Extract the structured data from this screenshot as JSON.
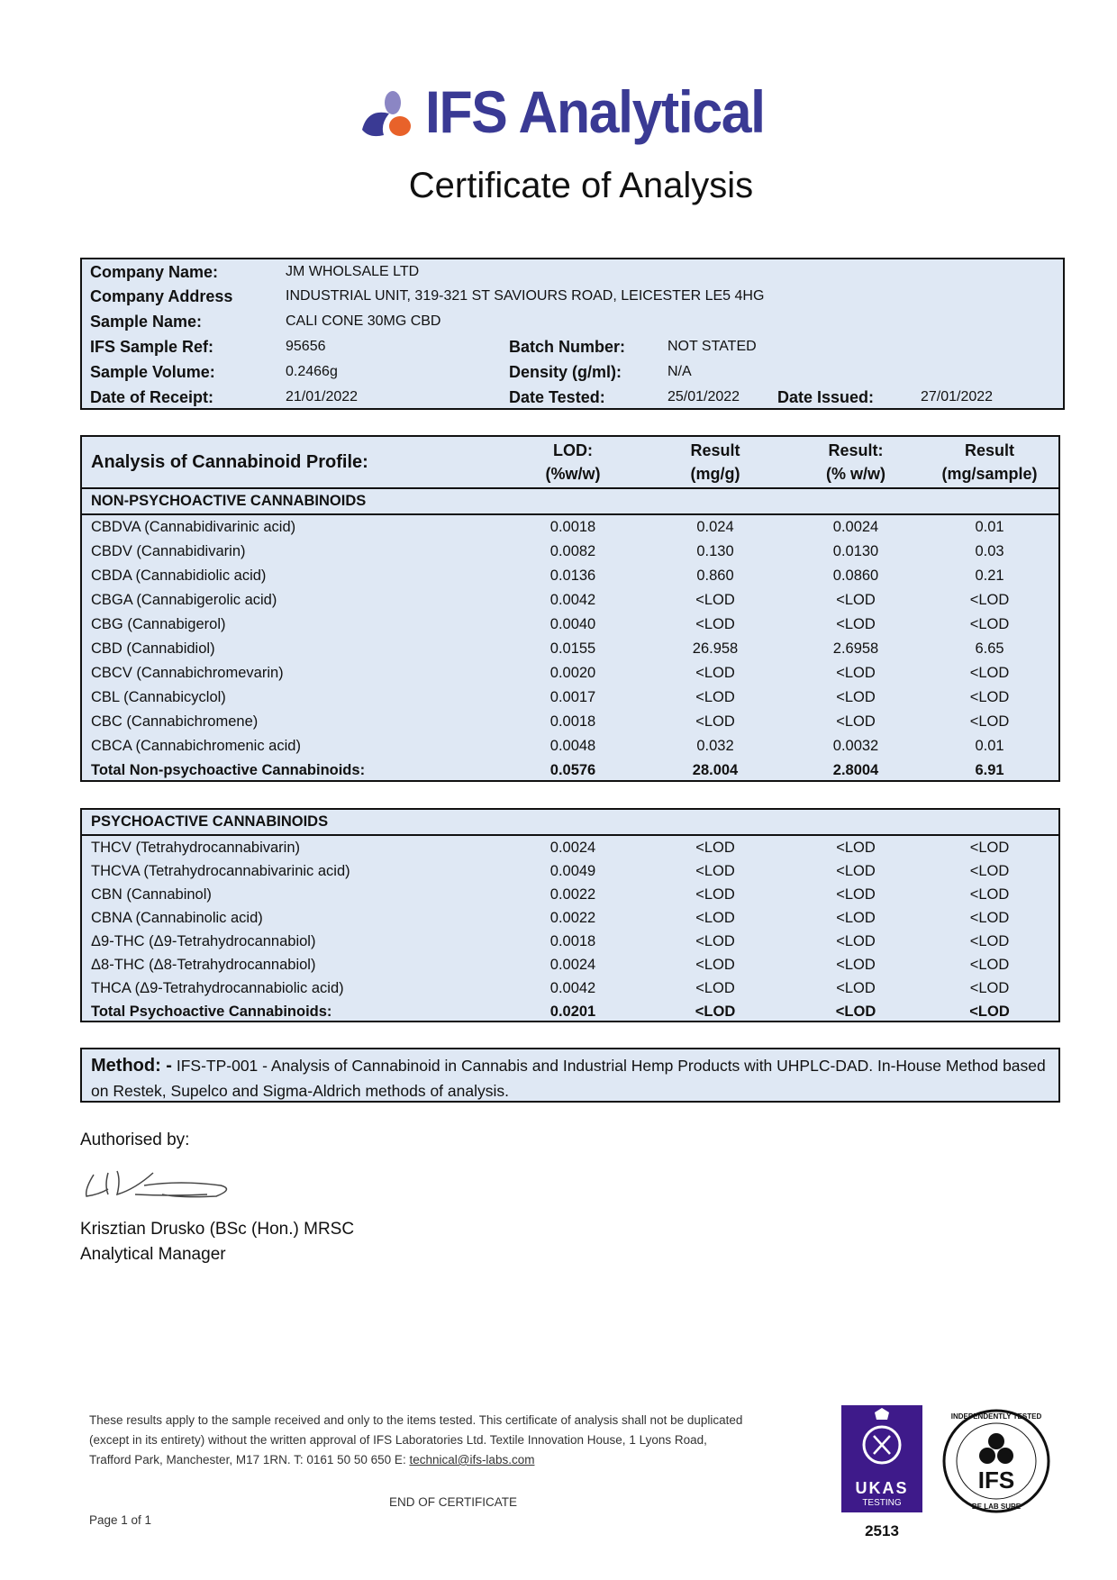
{
  "header": {
    "logo_text": "IFS Analytical",
    "title": "Certificate of Analysis"
  },
  "info": {
    "company_name_label": "Company Name:",
    "company_name": "JM WHOLSALE LTD",
    "company_address_label": "Company Address",
    "company_address": "INDUSTRIAL UNIT, 319-321 ST SAVIOURS ROAD, LEICESTER LE5 4HG",
    "sample_name_label": "Sample Name:",
    "sample_name": "CALI CONE 30MG CBD",
    "sample_ref_label": "IFS Sample Ref:",
    "sample_ref": "95656",
    "batch_label": "Batch Number:",
    "batch": "NOT STATED",
    "volume_label": "Sample Volume:",
    "volume": "0.2466g",
    "density_label": "Density (g/ml):",
    "density": "N/A",
    "receipt_label": "Date of Receipt:",
    "receipt": "21/01/2022",
    "tested_label": "Date Tested:",
    "tested": "25/01/2022",
    "issued_label": "Date Issued:",
    "issued": "27/01/2022"
  },
  "profile": {
    "title": "Analysis of Cannabinoid Profile:",
    "columns": [
      {
        "l1": "LOD:",
        "l2": "(%w/w)"
      },
      {
        "l1": "Result",
        "l2": "(mg/g)"
      },
      {
        "l1": "Result:",
        "l2": "(% w/w)"
      },
      {
        "l1": "Result",
        "l2": "(mg/sample)"
      }
    ],
    "non_psychoactive": {
      "heading": "NON-PSYCHOACTIVE CANNABINOIDS",
      "rows": [
        [
          "CBDVA (Cannabidivarinic acid)",
          "0.0018",
          "0.024",
          "0.0024",
          "0.01"
        ],
        [
          "CBDV (Cannabidivarin)",
          "0.0082",
          "0.130",
          "0.0130",
          "0.03"
        ],
        [
          "CBDA (Cannabidiolic acid)",
          "0.0136",
          "0.860",
          "0.0860",
          "0.21"
        ],
        [
          "CBGA (Cannabigerolic acid)",
          "0.0042",
          "<LOD",
          "<LOD",
          "<LOD"
        ],
        [
          "CBG (Cannabigerol)",
          "0.0040",
          "<LOD",
          "<LOD",
          "<LOD"
        ],
        [
          "CBD (Cannabidiol)",
          "0.0155",
          "26.958",
          "2.6958",
          "6.65"
        ],
        [
          "CBCV (Cannabichromevarin)",
          "0.0020",
          "<LOD",
          "<LOD",
          "<LOD"
        ],
        [
          "CBL (Cannabicyclol)",
          "0.0017",
          "<LOD",
          "<LOD",
          "<LOD"
        ],
        [
          "CBC (Cannabichromene)",
          "0.0018",
          "<LOD",
          "<LOD",
          "<LOD"
        ],
        [
          "CBCA (Cannabichromenic acid)",
          "0.0048",
          "0.032",
          "0.0032",
          "0.01"
        ]
      ],
      "total": [
        "Total Non-psychoactive Cannabinoids:",
        "0.0576",
        "28.004",
        "2.8004",
        "6.91"
      ]
    },
    "psychoactive": {
      "heading": "PSYCHOACTIVE CANNABINOIDS",
      "rows": [
        [
          "THCV (Tetrahydrocannabivarin)",
          "0.0024",
          "<LOD",
          "<LOD",
          "<LOD"
        ],
        [
          "THCVA (Tetrahydrocannabivarinic acid)",
          "0.0049",
          "<LOD",
          "<LOD",
          "<LOD"
        ],
        [
          "CBN (Cannabinol)",
          "0.0022",
          "<LOD",
          "<LOD",
          "<LOD"
        ],
        [
          "CBNA (Cannabinolic acid)",
          "0.0022",
          "<LOD",
          "<LOD",
          "<LOD"
        ],
        [
          "Δ9-THC (Δ9-Tetrahydrocannabiol)",
          "0.0018",
          "<LOD",
          "<LOD",
          "<LOD"
        ],
        [
          "Δ8-THC (Δ8-Tetrahydrocannabiol)",
          "0.0024",
          "<LOD",
          "<LOD",
          "<LOD"
        ],
        [
          "THCA (Δ9-Tetrahydrocannabiolic acid)",
          "0.0042",
          "<LOD",
          "<LOD",
          "<LOD"
        ]
      ],
      "total": [
        "Total Psychoactive Cannabinoids:",
        "0.0201",
        "<LOD",
        "<LOD",
        "<LOD"
      ]
    }
  },
  "method": {
    "label": "Method: -",
    "text": " IFS-TP-001 - Analysis of Cannabinoid in Cannabis and Industrial Hemp Products with UHPLC-DAD. In-House Method based on Restek, Supelco and Sigma-Aldrich methods of analysis."
  },
  "authorisation": {
    "label": "Authorised by:",
    "name": "Krisztian Drusko (BSc (Hon.) MRSC",
    "role": "Analytical Manager"
  },
  "footer": {
    "line1": "These results apply to the sample received and only to the items tested. This certificate of analysis shall not be duplicated",
    "line2": "(except in its entirety) without the written approval of IFS Laboratories Ltd. Textile Innovation House, 1 Lyons Road,",
    "line3": "Trafford Park, Manchester, M17 1RN. T: 0161 50 50 650 E: ",
    "email": "technical@ifs-labs.com",
    "end": "END OF CERTIFICATE",
    "page": "Page 1 of 1",
    "ukas_text": "UKAS",
    "ukas_sub": "TESTING",
    "ukas_number": "2513",
    "seal_text": "INDEPENDENTLY TESTED · IFS · BE LAB SURE"
  },
  "colors": {
    "brand_blue": "#3a3a94",
    "brand_orange": "#e8622a",
    "brand_lilac": "#8b86c4",
    "table_bg": "#dfe8f4",
    "ukas_purple": "#3e1a8a"
  }
}
